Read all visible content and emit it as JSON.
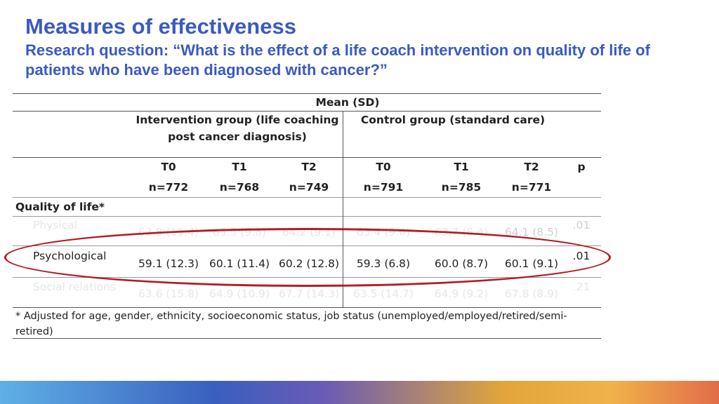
{
  "title": "Measures of effectiveness",
  "subtitle": "Research question: “What is the effect of a life coach intervention on quality of life of patients who have been diagnosed with cancer?”",
  "table": {
    "mean_sd_header": "Mean (SD)",
    "intervention_header_line1": "Intervention group (life coaching",
    "intervention_header_line2": "post cancer diagnosis)",
    "control_header": "Control group (standard care)",
    "time_headers": [
      "T0",
      "T1",
      "T2",
      "T0",
      "T1",
      "T2"
    ],
    "p_header": "p",
    "n_values": [
      "n=772",
      "n=768",
      "n=749",
      "n=791",
      "n=785",
      "n=771"
    ],
    "section_label": "Quality of life*",
    "rows": [
      {
        "label": "Physical",
        "values": [
          "63.8 (11.4)",
          "65.5 (9.8)",
          "64.2 (9.1)",
          "63.4 (9.0)",
          "63.7 (8.4)",
          "64.1 (8.5)"
        ],
        "p": ".01"
      },
      {
        "label": "Psychological",
        "values": [
          "59.1 (12.3)",
          "60.1 (11.4)",
          "60.2 (12.8)",
          "59.3 (6.8)",
          "60.0 (8.7)",
          "60.1 (9.1)"
        ],
        "p": ".01"
      },
      {
        "label": "Social relations",
        "values": [
          "63.6 (15.8)",
          "64.9 (10.9)",
          "67.7 (14.3)",
          "63.5 (14.7)",
          "64.9 (9.2)",
          "67.8 (8.9)"
        ],
        "p": ".21"
      }
    ],
    "footnote_line1": "* Adjusted for age, gender, ethnicity, socioeconomic status, job status (unemployed/employed/retired/semi-",
    "footnote_line2": "retired)"
  },
  "colors": {
    "title": "#3a5bbf",
    "highlight_ellipse": "#b01e24"
  }
}
